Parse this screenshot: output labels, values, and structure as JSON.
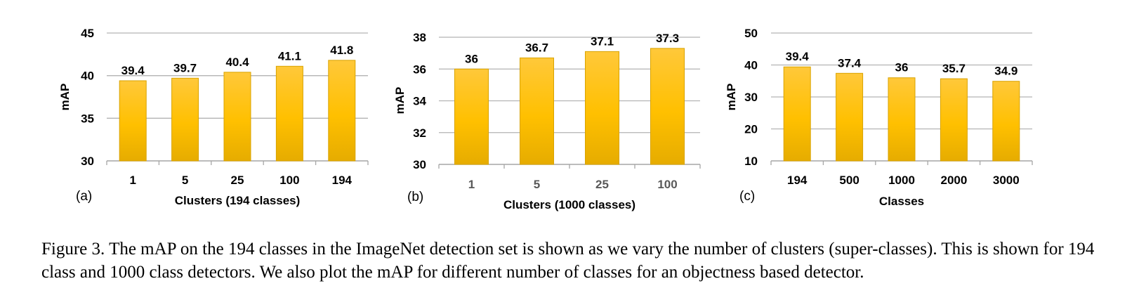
{
  "chart_data": [
    {
      "type": "bar",
      "panel_label": "(a)",
      "categories": [
        "1",
        "5",
        "25",
        "100",
        "194"
      ],
      "values": [
        39.4,
        39.7,
        40.4,
        41.1,
        41.8
      ],
      "value_labels": [
        "39.4",
        "39.7",
        "40.4",
        "41.1",
        "41.8"
      ],
      "ylabel": "mAP",
      "xlabel": "Clusters (194 classes)",
      "ylim": [
        30,
        45
      ],
      "yticks": [
        "30",
        "35",
        "40",
        "45"
      ],
      "grid": true,
      "bar_color": "#FFC000",
      "tick_label_color": "#000000"
    },
    {
      "type": "bar",
      "panel_label": "(b)",
      "categories": [
        "1",
        "5",
        "25",
        "100"
      ],
      "values": [
        36,
        36.7,
        37.1,
        37.3
      ],
      "value_labels": [
        "36",
        "36.7",
        "37.1",
        "37.3"
      ],
      "ylabel": "mAP",
      "xlabel": "Clusters (1000 classes)",
      "ylim": [
        30,
        38
      ],
      "yticks": [
        "30",
        "32",
        "34",
        "36",
        "38"
      ],
      "grid": true,
      "bar_color": "#FFC000",
      "tick_label_color": "#595959"
    },
    {
      "type": "bar",
      "panel_label": "(c)",
      "categories": [
        "194",
        "500",
        "1000",
        "2000",
        "3000"
      ],
      "values": [
        39.4,
        37.4,
        36,
        35.7,
        34.9
      ],
      "value_labels": [
        "39.4",
        "37.4",
        "36",
        "35.7",
        "34.9"
      ],
      "ylabel": "mAP",
      "xlabel": "Classes",
      "ylim": [
        10,
        50
      ],
      "yticks": [
        "10",
        "20",
        "30",
        "40",
        "50"
      ],
      "grid": true,
      "bar_color": "#FFC000",
      "tick_label_color": "#000000"
    }
  ],
  "caption": "Figure 3. The mAP on the 194 classes in the ImageNet detection set is shown as we vary the number of clusters (super-classes). This is shown for 194 class and 1000 class detectors. We also plot the mAP for different number of classes for an objectness based detector."
}
